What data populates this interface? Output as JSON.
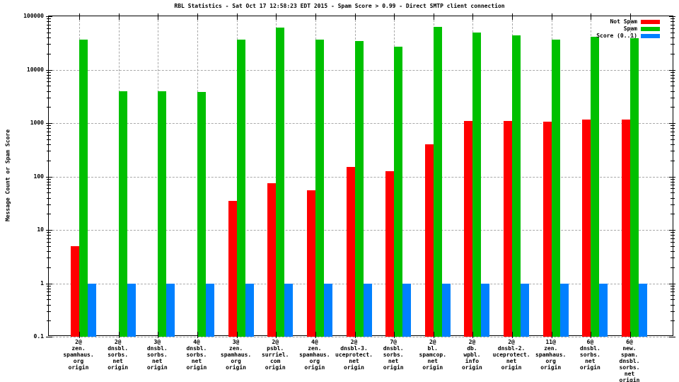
{
  "title": "RBL Statistics - Sat Oct 17 12:58:23 EDT 2015 - Spam Score > 0.99 - Direct SMTP client connection",
  "colors": {
    "not_spam": "#ff0000",
    "spam": "#00c000",
    "score": "#0080ff",
    "grid": "#a9a9a9",
    "border": "#000000"
  },
  "legend": [
    {
      "label": "Not Spam",
      "color": "#ff0000"
    },
    {
      "label": "Spam",
      "color": "#00c000"
    },
    {
      "label": "Score (0..1)",
      "color": "#0080ff"
    }
  ],
  "chart_data": {
    "type": "bar",
    "title": "RBL Statistics - Sat Oct 17 12:58:23 EDT 2015 - Spam Score > 0.99 - Direct SMTP client connection",
    "ylabel": "Message Count or Spam Score",
    "xlabel": "",
    "y_scale": "log",
    "ylim": [
      0.1,
      100000
    ],
    "ytick_labels": [
      "100000",
      "10000",
      "1000",
      "100",
      "10",
      "1",
      "0.1"
    ],
    "grid": true,
    "legend_position": "top-right-inside",
    "categories": [
      [
        "2@",
        "zen.",
        "spamhaus.",
        "org",
        "origin"
      ],
      [
        "2@",
        "dnsbl.",
        "sorbs.",
        "net",
        "origin"
      ],
      [
        "3@",
        "dnsbl.",
        "sorbs.",
        "net",
        "origin"
      ],
      [
        "4@",
        "dnsbl.",
        "sorbs.",
        "net",
        "origin"
      ],
      [
        "3@",
        "zen.",
        "spamhaus.",
        "org",
        "origin"
      ],
      [
        "2@",
        "psbl.",
        "surriel.",
        "com",
        "origin"
      ],
      [
        "4@",
        "zen.",
        "spamhaus.",
        "org",
        "origin"
      ],
      [
        "2@",
        "dnsbl-3.",
        "uceprotect.",
        "net",
        "origin"
      ],
      [
        "7@",
        "dnsbl.",
        "sorbs.",
        "net",
        "origin"
      ],
      [
        "2@",
        "bl.",
        "spamcop.",
        "net",
        "origin"
      ],
      [
        "2@",
        "db.",
        "wpbl.",
        "info",
        "origin"
      ],
      [
        "2@",
        "dnsbl-2.",
        "uceprotect.",
        "net",
        "origin"
      ],
      [
        "11@",
        "zen.",
        "spamhaus.",
        "org",
        "origin"
      ],
      [
        "6@",
        "dnsbl.",
        "sorbs.",
        "net",
        "origin"
      ],
      [
        "6@",
        "new.",
        "spam.",
        "dnsbl.",
        "sorbs.",
        "net",
        "origin"
      ]
    ],
    "series": [
      {
        "name": "Not Spam",
        "color": "#ff0000",
        "values": [
          5,
          0,
          0,
          0,
          35,
          75,
          55,
          150,
          125,
          400,
          1100,
          1100,
          1050,
          1150,
          1150
        ]
      },
      {
        "name": "Spam",
        "color": "#00c000",
        "values": [
          36000,
          3900,
          3950,
          3800,
          37000,
          62000,
          36000,
          34000,
          27000,
          64000,
          50000,
          44000,
          37000,
          41000,
          39000
        ]
      },
      {
        "name": "Score (0..1)",
        "color": "#0080ff",
        "values": [
          1,
          1,
          1,
          1,
          1,
          1,
          1,
          1,
          1,
          1,
          1,
          1,
          1,
          1,
          1
        ]
      }
    ]
  }
}
